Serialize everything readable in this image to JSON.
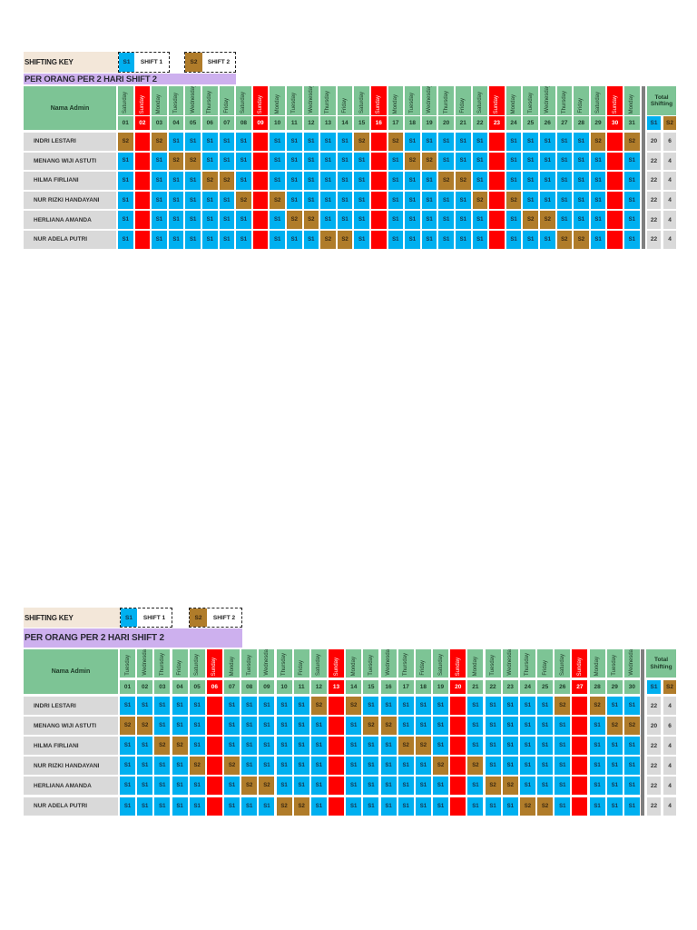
{
  "sections": [
    {
      "shifting_key": {
        "label": "SHIFTING KEY",
        "s1_code": "S1",
        "s1_label": "SHIFT 1",
        "s2_code": "S2",
        "s2_label": "SHIFT 2"
      },
      "subtitle": "PER ORANG PER 2 HARI SHIFT 2",
      "name_header": "Nama Admin",
      "total_header": "Total Shifting",
      "total_s1_code": "S1",
      "total_s2_code": "S2",
      "days": [
        {
          "name": "Saturday",
          "num": "01"
        },
        {
          "name": "Sunday",
          "num": "02"
        },
        {
          "name": "Monday",
          "num": "03"
        },
        {
          "name": "Tuesday",
          "num": "04"
        },
        {
          "name": "Wednesday",
          "num": "05"
        },
        {
          "name": "Thursday",
          "num": "06"
        },
        {
          "name": "Friday",
          "num": "07"
        },
        {
          "name": "Saturday",
          "num": "08"
        },
        {
          "name": "Sunday",
          "num": "09"
        },
        {
          "name": "Monday",
          "num": "10"
        },
        {
          "name": "Tuesday",
          "num": "11"
        },
        {
          "name": "Wednesday",
          "num": "12"
        },
        {
          "name": "Thursday",
          "num": "13"
        },
        {
          "name": "Friday",
          "num": "14"
        },
        {
          "name": "Saturday",
          "num": "15"
        },
        {
          "name": "Sunday",
          "num": "16"
        },
        {
          "name": "Monday",
          "num": "17"
        },
        {
          "name": "Tuesday",
          "num": "18"
        },
        {
          "name": "Wednesday",
          "num": "19"
        },
        {
          "name": "Thursday",
          "num": "20"
        },
        {
          "name": "Friday",
          "num": "21"
        },
        {
          "name": "Saturday",
          "num": "22"
        },
        {
          "name": "Sunday",
          "num": "23"
        },
        {
          "name": "Monday",
          "num": "24"
        },
        {
          "name": "Tuesday",
          "num": "25"
        },
        {
          "name": "Wednesday",
          "num": "26"
        },
        {
          "name": "Thursday",
          "num": "27"
        },
        {
          "name": "Friday",
          "num": "28"
        },
        {
          "name": "Saturday",
          "num": "29"
        },
        {
          "name": "Sunday",
          "num": "30"
        },
        {
          "name": "Monday",
          "num": "31"
        }
      ],
      "rows": [
        {
          "name": "INDRI LESTARI",
          "total_s1": "20",
          "total_s2": "6",
          "shifts": [
            "S2",
            "",
            "S2",
            "S1",
            "S1",
            "S1",
            "S1",
            "S1",
            "",
            "S1",
            "S1",
            "S1",
            "S1",
            "S1",
            "S2",
            "",
            "S2",
            "S1",
            "S1",
            "S1",
            "S1",
            "S1",
            "",
            "S1",
            "S1",
            "S1",
            "S1",
            "S1",
            "S2",
            "",
            "S2"
          ]
        },
        {
          "name": "MENANG WIJI ASTUTI",
          "total_s1": "22",
          "total_s2": "4",
          "shifts": [
            "S1",
            "",
            "S1",
            "S2",
            "S2",
            "S1",
            "S1",
            "S1",
            "",
            "S1",
            "S1",
            "S1",
            "S1",
            "S1",
            "S1",
            "",
            "S1",
            "S2",
            "S2",
            "S1",
            "S1",
            "S1",
            "",
            "S1",
            "S1",
            "S1",
            "S1",
            "S1",
            "S1",
            "",
            "S1"
          ]
        },
        {
          "name": "HILMA FIRLIANI",
          "total_s1": "22",
          "total_s2": "4",
          "shifts": [
            "S1",
            "",
            "S1",
            "S1",
            "S1",
            "S2",
            "S2",
            "S1",
            "",
            "S1",
            "S1",
            "S1",
            "S1",
            "S1",
            "S1",
            "",
            "S1",
            "S1",
            "S1",
            "S2",
            "S2",
            "S1",
            "",
            "S1",
            "S1",
            "S1",
            "S1",
            "S1",
            "S1",
            "",
            "S1"
          ]
        },
        {
          "name": "NUR RIZKI HANDAYANI",
          "total_s1": "22",
          "total_s2": "4",
          "shifts": [
            "S1",
            "",
            "S1",
            "S1",
            "S1",
            "S1",
            "S1",
            "S2",
            "",
            "S2",
            "S1",
            "S1",
            "S1",
            "S1",
            "S1",
            "",
            "S1",
            "S1",
            "S1",
            "S1",
            "S1",
            "S2",
            "",
            "S2",
            "S1",
            "S1",
            "S1",
            "S1",
            "S1",
            "",
            "S1"
          ]
        },
        {
          "name": "HERLIANA AMANDA",
          "total_s1": "22",
          "total_s2": "4",
          "shifts": [
            "S1",
            "",
            "S1",
            "S1",
            "S1",
            "S1",
            "S1",
            "S1",
            "",
            "S1",
            "S2",
            "S2",
            "S1",
            "S1",
            "S1",
            "",
            "S1",
            "S1",
            "S1",
            "S1",
            "S1",
            "S1",
            "",
            "S1",
            "S2",
            "S2",
            "S1",
            "S1",
            "S1",
            "",
            "S1"
          ]
        },
        {
          "name": "NUR ADELA PUTRI",
          "total_s1": "22",
          "total_s2": "4",
          "shifts": [
            "S1",
            "",
            "S1",
            "S1",
            "S1",
            "S1",
            "S1",
            "S1",
            "",
            "S1",
            "S1",
            "S1",
            "S2",
            "S2",
            "S1",
            "",
            "S1",
            "S1",
            "S1",
            "S1",
            "S1",
            "S1",
            "",
            "S1",
            "S1",
            "S1",
            "S2",
            "S2",
            "S1",
            "",
            "S1"
          ]
        }
      ]
    },
    {
      "shifting_key": {
        "label": "SHIFTING KEY",
        "s1_code": "S1",
        "s1_label": "SHIFT 1",
        "s2_code": "S2",
        "s2_label": "SHIFT 2"
      },
      "subtitle": "PER ORANG PER 2 HARI SHIFT 2",
      "name_header": "Nama Admin",
      "total_header": "Total Shifting",
      "total_s1_code": "S1",
      "total_s2_code": "S2",
      "days": [
        {
          "name": "Tuesday",
          "num": "01"
        },
        {
          "name": "Wednesday",
          "num": "02"
        },
        {
          "name": "Thursday",
          "num": "03"
        },
        {
          "name": "Friday",
          "num": "04"
        },
        {
          "name": "Saturday",
          "num": "05"
        },
        {
          "name": "Sunday",
          "num": "06"
        },
        {
          "name": "Monday",
          "num": "07"
        },
        {
          "name": "Tuesday",
          "num": "08"
        },
        {
          "name": "Wednesday",
          "num": "09"
        },
        {
          "name": "Thursday",
          "num": "10"
        },
        {
          "name": "Friday",
          "num": "11"
        },
        {
          "name": "Saturday",
          "num": "12"
        },
        {
          "name": "Sunday",
          "num": "13"
        },
        {
          "name": "Monday",
          "num": "14"
        },
        {
          "name": "Tuesday",
          "num": "15"
        },
        {
          "name": "Wednesday",
          "num": "16"
        },
        {
          "name": "Thursday",
          "num": "17"
        },
        {
          "name": "Friday",
          "num": "18"
        },
        {
          "name": "Saturday",
          "num": "19"
        },
        {
          "name": "Sunday",
          "num": "20"
        },
        {
          "name": "Monday",
          "num": "21"
        },
        {
          "name": "Tuesday",
          "num": "22"
        },
        {
          "name": "Wednesday",
          "num": "23"
        },
        {
          "name": "Thursday",
          "num": "24"
        },
        {
          "name": "Friday",
          "num": "25"
        },
        {
          "name": "Saturday",
          "num": "26"
        },
        {
          "name": "Sunday",
          "num": "27"
        },
        {
          "name": "Monday",
          "num": "28"
        },
        {
          "name": "Tuesday",
          "num": "29"
        },
        {
          "name": "Wednesday",
          "num": "30"
        }
      ],
      "rows": [
        {
          "name": "INDRI LESTARI",
          "total_s1": "22",
          "total_s2": "4",
          "shifts": [
            "S1",
            "S1",
            "S1",
            "S1",
            "S1",
            "",
            "S1",
            "S1",
            "S1",
            "S1",
            "S1",
            "S2",
            "",
            "S2",
            "S1",
            "S1",
            "S1",
            "S1",
            "S1",
            "",
            "S1",
            "S1",
            "S1",
            "S1",
            "S1",
            "S2",
            "",
            "S2",
            "S1",
            "S1"
          ]
        },
        {
          "name": "MENANG WIJI ASTUTI",
          "total_s1": "20",
          "total_s2": "6",
          "shifts": [
            "S2",
            "S2",
            "S1",
            "S1",
            "S1",
            "",
            "S1",
            "S1",
            "S1",
            "S1",
            "S1",
            "S1",
            "",
            "S1",
            "S2",
            "S2",
            "S1",
            "S1",
            "S1",
            "",
            "S1",
            "S1",
            "S1",
            "S1",
            "S1",
            "S1",
            "",
            "S1",
            "S2",
            "S2"
          ]
        },
        {
          "name": "HILMA FIRLIANI",
          "total_s1": "22",
          "total_s2": "4",
          "shifts": [
            "S1",
            "S1",
            "S2",
            "S2",
            "S1",
            "",
            "S1",
            "S1",
            "S1",
            "S1",
            "S1",
            "S1",
            "",
            "S1",
            "S1",
            "S1",
            "S2",
            "S2",
            "S1",
            "",
            "S1",
            "S1",
            "S1",
            "S1",
            "S1",
            "S1",
            "",
            "S1",
            "S1",
            "S1"
          ]
        },
        {
          "name": "NUR RIZKI HANDAYANI",
          "total_s1": "22",
          "total_s2": "4",
          "shifts": [
            "S1",
            "S1",
            "S1",
            "S1",
            "S2",
            "",
            "S2",
            "S1",
            "S1",
            "S1",
            "S1",
            "S1",
            "",
            "S1",
            "S1",
            "S1",
            "S1",
            "S1",
            "S2",
            "",
            "S2",
            "S1",
            "S1",
            "S1",
            "S1",
            "S1",
            "",
            "S1",
            "S1",
            "S1"
          ]
        },
        {
          "name": "HERLIANA AMANDA",
          "total_s1": "22",
          "total_s2": "4",
          "shifts": [
            "S1",
            "S1",
            "S1",
            "S1",
            "S1",
            "",
            "S1",
            "S2",
            "S2",
            "S1",
            "S1",
            "S1",
            "",
            "S1",
            "S1",
            "S1",
            "S1",
            "S1",
            "S1",
            "",
            "S1",
            "S2",
            "S2",
            "S1",
            "S1",
            "S1",
            "",
            "S1",
            "S1",
            "S1"
          ]
        },
        {
          "name": "NUR ADELA PUTRI",
          "total_s1": "22",
          "total_s2": "4",
          "shifts": [
            "S1",
            "S1",
            "S1",
            "S1",
            "S1",
            "",
            "S1",
            "S1",
            "S1",
            "S2",
            "S2",
            "S1",
            "",
            "S1",
            "S1",
            "S1",
            "S1",
            "S1",
            "S1",
            "",
            "S1",
            "S1",
            "S1",
            "S2",
            "S2",
            "S1",
            "",
            "S1",
            "S1",
            "S1"
          ]
        }
      ]
    }
  ],
  "colors": {
    "shift1": "#00b0f0",
    "shift2": "#b07c2a",
    "off_day": "#ff0000",
    "header_green": "#7dc495",
    "subtitle_purple": "#cdb0ee",
    "key_beige": "#f3e7d9",
    "name_gray": "#d9d9d9"
  }
}
